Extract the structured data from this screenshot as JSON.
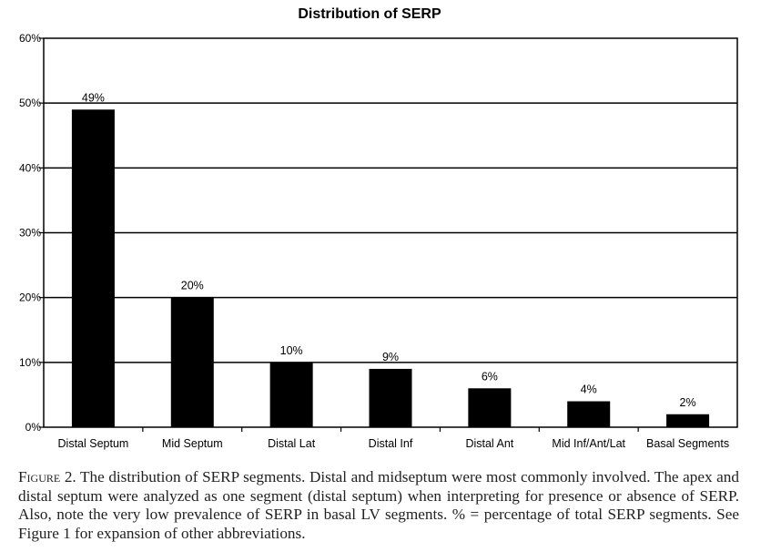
{
  "chart_data": {
    "type": "bar",
    "title": "Distribution of SERP",
    "xlabel": "",
    "ylabel": "",
    "categories": [
      "Distal Septum",
      "Mid Septum",
      "Distal Lat",
      "Distal Inf",
      "Distal Ant",
      "Mid Inf/Ant/Lat",
      "Basal Segments"
    ],
    "values": [
      49,
      20,
      10,
      9,
      6,
      4,
      2
    ],
    "data_labels": [
      "49%",
      "20%",
      "10%",
      "9%",
      "6%",
      "4%",
      "2%"
    ],
    "ylim": [
      0,
      60
    ],
    "yticks": [
      0,
      10,
      20,
      30,
      40,
      50,
      60
    ],
    "ytick_labels": [
      "0%",
      "10%",
      "20%",
      "30%",
      "40%",
      "50%",
      "60%"
    ],
    "grid": true,
    "bar_color": "#000000"
  },
  "caption": {
    "label": "Figure 2.",
    "text": " The distribution of SERP segments. Distal and midseptum were most commonly involved. The apex and distal septum were analyzed as one segment (distal septum) when interpreting for presence or absence of SERP. Also, note the very low prevalence of SERP in basal LV segments. % = percentage of total SERP segments. See Figure 1 for expansion of other abbreviations."
  }
}
